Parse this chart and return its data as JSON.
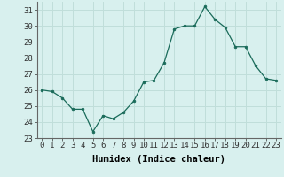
{
  "x": [
    0,
    1,
    2,
    3,
    4,
    5,
    6,
    7,
    8,
    9,
    10,
    11,
    12,
    13,
    14,
    15,
    16,
    17,
    18,
    19,
    20,
    21,
    22,
    23
  ],
  "y": [
    26.0,
    25.9,
    25.5,
    24.8,
    24.8,
    23.4,
    24.4,
    24.2,
    24.6,
    25.3,
    26.5,
    26.6,
    27.7,
    29.8,
    30.0,
    30.0,
    31.2,
    30.4,
    29.9,
    28.7,
    28.7,
    27.5,
    26.7,
    26.6
  ],
  "xlabel": "Humidex (Indice chaleur)",
  "ylim": [
    23,
    31.5
  ],
  "yticks": [
    23,
    24,
    25,
    26,
    27,
    28,
    29,
    30,
    31
  ],
  "xticks": [
    0,
    1,
    2,
    3,
    4,
    5,
    6,
    7,
    8,
    9,
    10,
    11,
    12,
    13,
    14,
    15,
    16,
    17,
    18,
    19,
    20,
    21,
    22,
    23
  ],
  "line_color": "#1a6b5a",
  "marker": "o",
  "marker_size": 2.0,
  "bg_color": "#d8f0ee",
  "grid_color": "#c0deda",
  "tick_label_fontsize": 6.5,
  "xlabel_fontsize": 7.5
}
